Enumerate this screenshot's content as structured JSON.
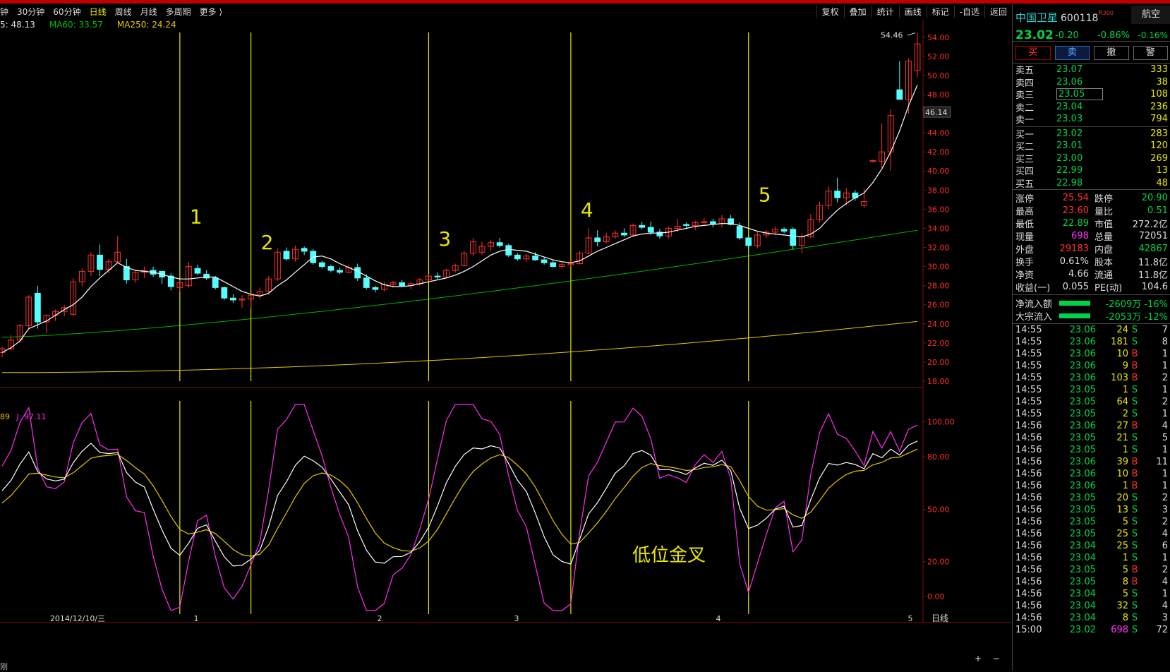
{
  "toolbar": {
    "tabs": [
      "钟",
      "30分钟",
      "60分钟",
      "日线",
      "周线",
      "月线",
      "多周期",
      "更多 ⟩"
    ],
    "active_tab": "日线",
    "right_buttons": [
      "复权",
      "叠加",
      "统计",
      "画线",
      "标记",
      "-自选",
      "返回"
    ]
  },
  "ma_legend": {
    "ma5": "5: 48.13",
    "ma60": "MA60: 33.57",
    "ma250": "MA250: 24.24"
  },
  "kdj_legend": {
    "d_partial": "89",
    "j": "J: 97.11"
  },
  "chart_data": {
    "type": "candlestick",
    "price_axis": [
      "54.00",
      "52.00",
      "50.00",
      "48.00",
      "46.00",
      "44.00",
      "42.00",
      "40.00",
      "38.00",
      "36.00",
      "34.00",
      "32.00",
      "30.00",
      "28.00",
      "26.00",
      "24.00",
      "22.00",
      "20.00",
      "18.00"
    ],
    "price_range": [
      18,
      54.5
    ],
    "high_label": "54.46",
    "current_label": "46.14",
    "kdj_axis": [
      "100.00",
      "80.00",
      "50.00",
      "20.00",
      "0.00"
    ],
    "kdj_range": [
      -10,
      112
    ],
    "date_labels": [
      "2014/12/10/三",
      "1",
      "2",
      "3",
      "4",
      "5"
    ],
    "period_label": "日线",
    "markers": [
      {
        "label": "1",
        "index": 20
      },
      {
        "label": "2",
        "index": 28
      },
      {
        "label": "3",
        "index": 48
      },
      {
        "label": "4",
        "index": 64
      },
      {
        "label": "5",
        "index": 84
      }
    ],
    "annotation": "低位金叉",
    "colors": {
      "up": "#ff3030",
      "down": "#54ffff",
      "ma5": "#ffffff",
      "ma60": "#00b400",
      "ma250": "#e8c800",
      "k": "#ffffff",
      "d": "#e8c800",
      "j": "#ff2ff0",
      "marker": "#e8e800"
    },
    "ohlc": [
      [
        21.0,
        21.6,
        20.5,
        21.4
      ],
      [
        21.4,
        22.8,
        21.2,
        22.3
      ],
      [
        22.3,
        24.0,
        22.0,
        23.8
      ],
      [
        23.8,
        27.0,
        23.5,
        26.8
      ],
      [
        27.2,
        28.0,
        23.5,
        24.2
      ],
      [
        24.2,
        25.0,
        23.0,
        24.9
      ],
      [
        24.9,
        25.5,
        24.3,
        25.3
      ],
      [
        25.3,
        26.0,
        24.8,
        25.7
      ],
      [
        25.0,
        28.8,
        24.8,
        28.4
      ],
      [
        28.4,
        29.8,
        27.9,
        29.5
      ],
      [
        29.5,
        31.5,
        29.0,
        31.2
      ],
      [
        31.2,
        32.3,
        29.0,
        29.7
      ],
      [
        29.7,
        30.8,
        29.3,
        30.5
      ],
      [
        30.5,
        33.2,
        30.4,
        31.5
      ],
      [
        30.0,
        30.8,
        28.2,
        28.6
      ],
      [
        28.6,
        29.6,
        28.3,
        29.4
      ],
      [
        29.4,
        30.0,
        28.8,
        29.6
      ],
      [
        29.6,
        30.0,
        28.9,
        29.2
      ],
      [
        29.5,
        29.5,
        28.2,
        28.9
      ],
      [
        29.0,
        29.3,
        27.5,
        27.9
      ],
      [
        27.8,
        28.6,
        27.4,
        28.3
      ],
      [
        28.0,
        30.5,
        27.8,
        30.0
      ],
      [
        29.8,
        30.2,
        29.1,
        29.3
      ],
      [
        29.2,
        29.6,
        28.6,
        28.8
      ],
      [
        28.8,
        29.0,
        27.6,
        27.8
      ],
      [
        27.8,
        27.9,
        26.5,
        26.7
      ],
      [
        26.7,
        27.1,
        26.2,
        26.5
      ],
      [
        26.5,
        27.0,
        25.7,
        26.6
      ],
      [
        26.6,
        27.2,
        25.6,
        27.0
      ],
      [
        27.0,
        27.8,
        26.6,
        27.4
      ],
      [
        27.4,
        29.0,
        27.1,
        28.7
      ],
      [
        28.7,
        31.9,
        28.5,
        31.5
      ],
      [
        31.6,
        32.0,
        30.6,
        30.8
      ],
      [
        30.8,
        32.2,
        30.5,
        31.8
      ],
      [
        31.9,
        32.1,
        31.2,
        31.6
      ],
      [
        31.6,
        31.8,
        30.2,
        30.4
      ],
      [
        30.4,
        30.6,
        29.8,
        30.0
      ],
      [
        30.0,
        30.2,
        29.4,
        29.6
      ],
      [
        29.6,
        29.9,
        29.2,
        29.4
      ],
      [
        29.4,
        30.2,
        29.3,
        29.9
      ],
      [
        29.9,
        30.3,
        28.5,
        28.8
      ],
      [
        28.8,
        29.2,
        27.6,
        27.8
      ],
      [
        27.8,
        28.0,
        27.3,
        27.6
      ],
      [
        27.6,
        28.4,
        27.4,
        28.1
      ],
      [
        28.1,
        28.5,
        27.8,
        28.3
      ],
      [
        28.3,
        28.6,
        27.9,
        28.0
      ],
      [
        28.0,
        28.4,
        27.6,
        28.2
      ],
      [
        28.2,
        28.8,
        28.0,
        28.6
      ],
      [
        28.6,
        29.2,
        28.4,
        29.0
      ],
      [
        29.0,
        29.4,
        28.7,
        28.9
      ],
      [
        28.9,
        29.8,
        28.8,
        29.6
      ],
      [
        29.6,
        30.3,
        29.4,
        30.1
      ],
      [
        30.1,
        31.6,
        30.0,
        31.4
      ],
      [
        31.4,
        33.0,
        31.1,
        32.6
      ],
      [
        31.5,
        32.6,
        31.2,
        32.1
      ],
      [
        32.1,
        32.8,
        31.6,
        32.5
      ],
      [
        32.5,
        33.0,
        32.0,
        32.2
      ],
      [
        32.2,
        32.4,
        31.0,
        31.2
      ],
      [
        31.2,
        31.4,
        30.6,
        30.8
      ],
      [
        30.8,
        31.3,
        30.5,
        31.1
      ],
      [
        31.1,
        31.5,
        30.6,
        30.7
      ],
      [
        30.7,
        31.0,
        30.2,
        30.4
      ],
      [
        30.4,
        30.7,
        29.9,
        30.0
      ],
      [
        30.0,
        30.4,
        29.8,
        30.2
      ],
      [
        30.2,
        30.6,
        30.0,
        30.3
      ],
      [
        30.3,
        31.6,
        30.2,
        31.4
      ],
      [
        31.4,
        34.0,
        31.3,
        33.0
      ],
      [
        33.0,
        33.8,
        32.1,
        32.6
      ],
      [
        32.6,
        33.5,
        32.4,
        33.1
      ],
      [
        33.1,
        33.8,
        32.9,
        33.5
      ],
      [
        33.5,
        34.0,
        33.1,
        33.3
      ],
      [
        33.3,
        34.5,
        33.1,
        34.3
      ],
      [
        34.3,
        34.7,
        33.9,
        34.1
      ],
      [
        34.1,
        34.7,
        33.3,
        33.6
      ],
      [
        33.6,
        33.9,
        32.9,
        33.2
      ],
      [
        33.2,
        34.2,
        32.9,
        34.0
      ],
      [
        34.0,
        35.0,
        33.6,
        34.2
      ],
      [
        34.4,
        34.6,
        33.9,
        34.3
      ],
      [
        34.3,
        34.8,
        33.8,
        34.6
      ],
      [
        34.6,
        35.1,
        34.3,
        34.7
      ],
      [
        34.7,
        35.0,
        34.1,
        34.5
      ],
      [
        34.5,
        35.4,
        34.1,
        35.0
      ],
      [
        35.0,
        35.4,
        34.3,
        34.4
      ],
      [
        34.2,
        34.6,
        32.8,
        33.0
      ],
      [
        33.0,
        33.3,
        31.6,
        32.2
      ],
      [
        32.2,
        33.6,
        31.9,
        33.3
      ],
      [
        33.3,
        33.8,
        33.0,
        33.6
      ],
      [
        33.6,
        34.2,
        33.3,
        33.9
      ],
      [
        33.9,
        34.1,
        33.5,
        33.7
      ],
      [
        33.9,
        34.1,
        31.8,
        32.2
      ],
      [
        32.2,
        33.5,
        31.4,
        33.1
      ],
      [
        33.1,
        35.5,
        33.0,
        34.9
      ],
      [
        34.9,
        36.8,
        34.6,
        36.4
      ],
      [
        36.4,
        38.4,
        36.0,
        37.9
      ],
      [
        37.9,
        39.3,
        36.7,
        37.2
      ],
      [
        37.2,
        38.2,
        36.4,
        37.7
      ],
      [
        37.7,
        38.0,
        36.9,
        37.2
      ],
      [
        36.4,
        38.2,
        36.1,
        36.8
      ],
      [
        41.0,
        41.2,
        40.9,
        41.1
      ],
      [
        41.0,
        45.0,
        40.3,
        42.0
      ],
      [
        42.0,
        46.5,
        40.0,
        45.8
      ],
      [
        48.5,
        51.5,
        47.8,
        47.5
      ],
      [
        47.5,
        51.8,
        46.0,
        51.5
      ],
      [
        50.5,
        54.46,
        49.8,
        53.3
      ]
    ],
    "ma5": [
      21.0,
      21.5,
      22.2,
      23.5,
      23.9,
      24.3,
      24.9,
      25.5,
      26.0,
      26.8,
      27.9,
      28.8,
      29.6,
      30.4,
      29.9,
      29.6,
      29.5,
      29.4,
      29.2,
      28.9,
      28.7,
      28.7,
      28.8,
      28.9,
      28.9,
      28.4,
      27.9,
      27.4,
      27.1,
      26.9,
      27.2,
      28.0,
      28.6,
      29.4,
      30.2,
      31.0,
      31.1,
      30.8,
      30.3,
      29.9,
      29.5,
      29.0,
      28.5,
      28.1,
      27.9,
      27.9,
      28.0,
      28.2,
      28.4,
      28.6,
      28.8,
      29.1,
      29.5,
      30.0,
      30.6,
      31.2,
      31.6,
      31.8,
      31.7,
      31.6,
      31.3,
      31.0,
      30.7,
      30.5,
      30.4,
      30.6,
      31.1,
      31.6,
      32.0,
      32.4,
      32.8,
      33.2,
      33.4,
      33.5,
      33.5,
      33.6,
      33.8,
      34.0,
      34.2,
      34.3,
      34.4,
      34.5,
      34.5,
      34.3,
      34.0,
      33.7,
      33.5,
      33.4,
      33.3,
      33.2,
      33.1,
      33.4,
      34.0,
      35.0,
      35.9,
      36.6,
      37.2,
      37.7,
      38.8,
      40.2,
      42.0,
      44.2,
      46.8,
      49.0
    ]
  },
  "panel": {
    "stock_name": "中国卫星",
    "stock_code": "600118",
    "r_tag": "R",
    "r_sub": "300",
    "sector": "航空",
    "sector_pct": "-0.16%",
    "price": "23.02",
    "change": "-0.20",
    "change_pct": "-0.86%",
    "trade_buttons": [
      "买",
      "卖",
      "撤",
      "警"
    ],
    "asks": [
      {
        "label": "卖五",
        "price": "23.07",
        "vol": "333"
      },
      {
        "label": "卖四",
        "price": "23.06",
        "vol": "38"
      },
      {
        "label": "卖三",
        "price": "23.05",
        "vol": "108"
      },
      {
        "label": "卖二",
        "price": "23.04",
        "vol": "236"
      },
      {
        "label": "卖一",
        "price": "23.03",
        "vol": "794"
      }
    ],
    "bids": [
      {
        "label": "买一",
        "price": "23.02",
        "vol": "283"
      },
      {
        "label": "买二",
        "price": "23.01",
        "vol": "120"
      },
      {
        "label": "买三",
        "price": "23.00",
        "vol": "269"
      },
      {
        "label": "买四",
        "price": "22.99",
        "vol": "13"
      },
      {
        "label": "买五",
        "price": "22.98",
        "vol": "48"
      }
    ],
    "stats": [
      {
        "k1": "涨停",
        "v1": "25.54",
        "c1": "c-red",
        "k2": "跌停",
        "v2": "20.90",
        "c2": "c-green"
      },
      {
        "k1": "最高",
        "v1": "23.60",
        "c1": "c-red",
        "k2": "量比",
        "v2": "0.51",
        "c2": "c-green"
      },
      {
        "k1": "最低",
        "v1": "22.89",
        "c1": "c-green",
        "k2": "市值",
        "v2": "272.2亿",
        "c2": "c-white"
      },
      {
        "k1": "现量",
        "v1": "698",
        "c1": "c-mag",
        "k2": "总量",
        "v2": "72051",
        "c2": "c-white"
      },
      {
        "k1": "外盘",
        "v1": "29183",
        "c1": "c-red",
        "k2": "内盘",
        "v2": "42867",
        "c2": "c-green"
      },
      {
        "k1": "换手",
        "v1": "0.61%",
        "c1": "c-white",
        "k2": "股本",
        "v2": "11.8亿",
        "c2": "c-white"
      },
      {
        "k1": "净资",
        "v1": "4.66",
        "c1": "c-white",
        "k2": "流通",
        "v2": "11.8亿",
        "c2": "c-white"
      },
      {
        "k1": "收益(一)",
        "v1": "0.055",
        "c1": "c-white",
        "k2": "PE(动)",
        "v2": "104.6",
        "c2": "c-white"
      }
    ],
    "flows": [
      {
        "label": "净流入额",
        "value": "-2609万 -16%"
      },
      {
        "label": "大宗流入",
        "value": "-2053万 -12%"
      }
    ],
    "ticks": [
      {
        "t": "14:55",
        "p": "23.06",
        "q": "24",
        "s": "S",
        "n": "7"
      },
      {
        "t": "14:55",
        "p": "23.06",
        "q": "181",
        "s": "S",
        "n": "8"
      },
      {
        "t": "14:55",
        "p": "23.06",
        "q": "10",
        "s": "B",
        "n": "1"
      },
      {
        "t": "14:55",
        "p": "23.06",
        "q": "9",
        "s": "B",
        "n": "1"
      },
      {
        "t": "14:55",
        "p": "23.06",
        "q": "103",
        "s": "B",
        "n": "2"
      },
      {
        "t": "14:55",
        "p": "23.05",
        "q": "1",
        "s": "S",
        "n": "1"
      },
      {
        "t": "14:55",
        "p": "23.05",
        "q": "64",
        "s": "S",
        "n": "2"
      },
      {
        "t": "14:55",
        "p": "23.05",
        "q": "2",
        "s": "S",
        "n": "1"
      },
      {
        "t": "14:56",
        "p": "23.06",
        "q": "27",
        "s": "B",
        "n": "4"
      },
      {
        "t": "14:56",
        "p": "23.05",
        "q": "21",
        "s": "S",
        "n": "5"
      },
      {
        "t": "14:56",
        "p": "23.05",
        "q": "1",
        "s": "S",
        "n": "1"
      },
      {
        "t": "14:56",
        "p": "23.06",
        "q": "39",
        "s": "B",
        "n": "11"
      },
      {
        "t": "14:56",
        "p": "23.06",
        "q": "10",
        "s": "B",
        "n": "1"
      },
      {
        "t": "14:56",
        "p": "23.06",
        "q": "1",
        "s": "B",
        "n": "1"
      },
      {
        "t": "14:56",
        "p": "23.05",
        "q": "20",
        "s": "S",
        "n": "2"
      },
      {
        "t": "14:56",
        "p": "23.05",
        "q": "13",
        "s": "S",
        "n": "3"
      },
      {
        "t": "14:56",
        "p": "23.05",
        "q": "5",
        "s": "S",
        "n": "2"
      },
      {
        "t": "14:56",
        "p": "23.05",
        "q": "25",
        "s": "S",
        "n": "4"
      },
      {
        "t": "14:56",
        "p": "23.04",
        "q": "25",
        "s": "S",
        "n": "6"
      },
      {
        "t": "14:56",
        "p": "23.04",
        "q": "1",
        "s": "S",
        "n": "1"
      },
      {
        "t": "14:56",
        "p": "23.05",
        "q": "5",
        "s": "B",
        "n": "2"
      },
      {
        "t": "14:56",
        "p": "23.05",
        "q": "8",
        "s": "B",
        "n": "4"
      },
      {
        "t": "14:56",
        "p": "23.04",
        "q": "5",
        "s": "S",
        "n": "1"
      },
      {
        "t": "14:56",
        "p": "23.04",
        "q": "32",
        "s": "S",
        "n": "4"
      },
      {
        "t": "14:56",
        "p": "23.04",
        "q": "8",
        "s": "S",
        "n": "3"
      },
      {
        "t": "15:00",
        "p": "23.02",
        "q": "698",
        "s": "S",
        "n": "72"
      }
    ]
  },
  "bottom_controls": {
    "plus": "+",
    "minus": "−"
  },
  "bottom_left": "刚"
}
